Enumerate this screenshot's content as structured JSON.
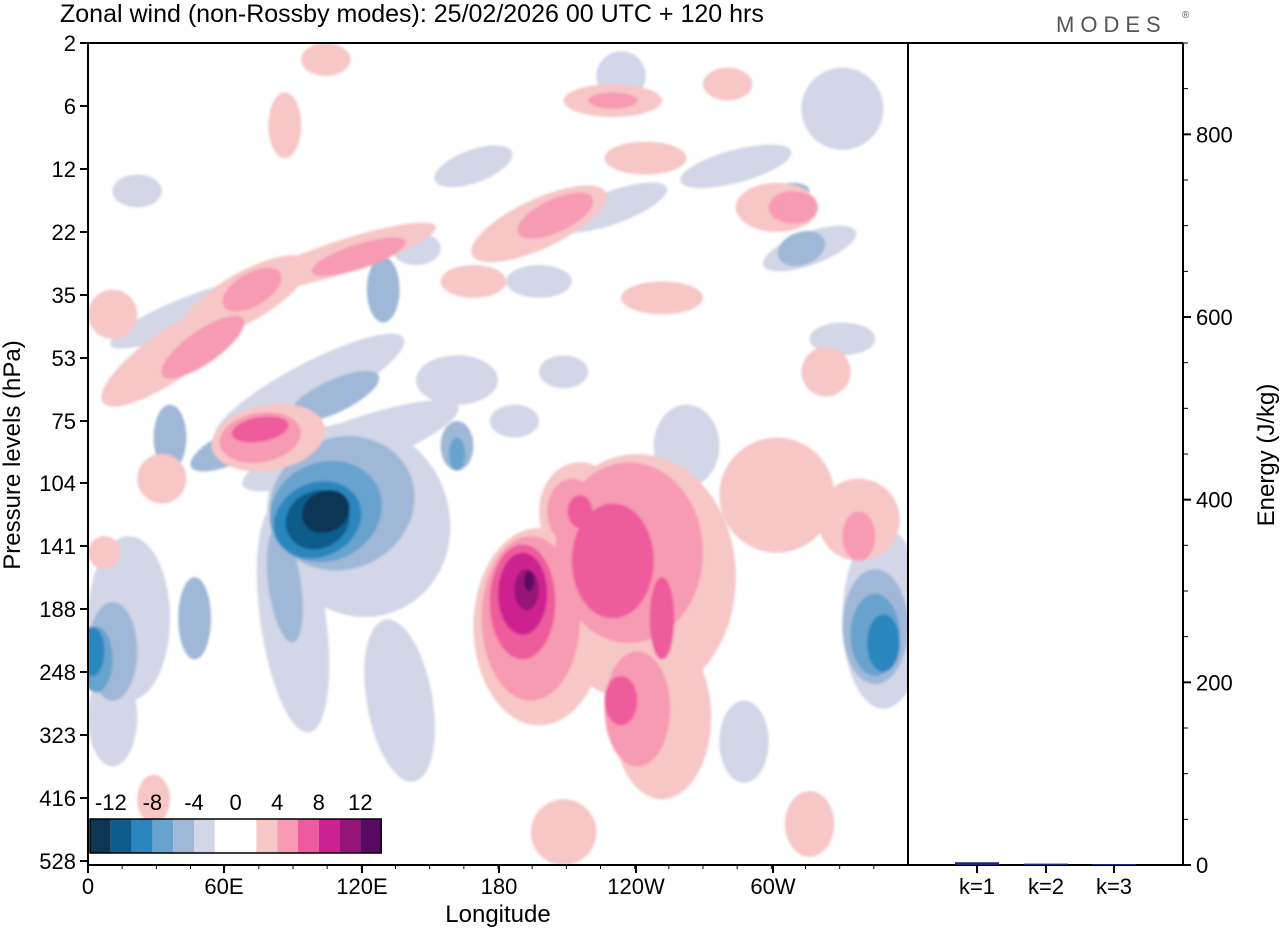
{
  "header": {
    "title": "Zonal wind (non-Rossby modes):  25/02/2026  00 UTC  + 120 hrs",
    "brand": "MODES",
    "brand_mark": "®"
  },
  "colors": {
    "neg": [
      "#0b3654",
      "#0e5c8c",
      "#2a86bf",
      "#67a3cd",
      "#9fb8d8",
      "#d2d6e6"
    ],
    "pos": [
      "#f7c6c6",
      "#f79ab3",
      "#ee5b9c",
      "#cc2190",
      "#961378",
      "#5a0a63"
    ],
    "bar": "#1a237e"
  },
  "chart_data": [
    {
      "type": "heatmap",
      "title": "Zonal wind (non-Rossby modes):  25/02/2026  00 UTC  + 120 hrs",
      "xlabel": "Longitude",
      "ylabel": "Pressure levels (hPa)",
      "x_ticks": [
        "0",
        "60E",
        "120E",
        "180",
        "120W",
        "60W"
      ],
      "x_range_deg": [
        0,
        360
      ],
      "y_ticks": [
        "2",
        "6",
        "12",
        "22",
        "35",
        "53",
        "75",
        "104",
        "141",
        "188",
        "248",
        "323",
        "416",
        "528"
      ],
      "colorbar": {
        "labels": [
          "-12",
          "-8",
          "-4",
          "0",
          "4",
          "8",
          "12"
        ],
        "levels": [
          -14,
          -12,
          -10,
          -8,
          -6,
          -4,
          -2,
          2,
          4,
          6,
          8,
          10,
          12,
          14
        ]
      },
      "features": [
        {
          "name": "easterly jet core",
          "lon": 105,
          "level": "104-141",
          "value": -14
        },
        {
          "name": "westerly maximum",
          "lon": 190,
          "level": "141",
          "value": 12
        },
        {
          "name": "westerly region",
          "lon": 235,
          "level": "104-141",
          "value": 8
        },
        {
          "name": "easterly region",
          "lon": 355,
          "level": "188-248",
          "value": -10
        },
        {
          "name": "westerly band",
          "lon": 80,
          "level": "75",
          "value": 6
        },
        {
          "name": "easterly region",
          "lon": 2,
          "level": "248",
          "value": -8
        }
      ]
    },
    {
      "type": "bar",
      "ylabel": "Energy (J/kg)",
      "categories": [
        "k=1",
        "k=2",
        "k=3"
      ],
      "values": [
        3,
        1.5,
        1
      ],
      "ylim": [
        0,
        900
      ],
      "y_ticks": [
        "0",
        "200",
        "400",
        "600",
        "800"
      ]
    }
  ]
}
